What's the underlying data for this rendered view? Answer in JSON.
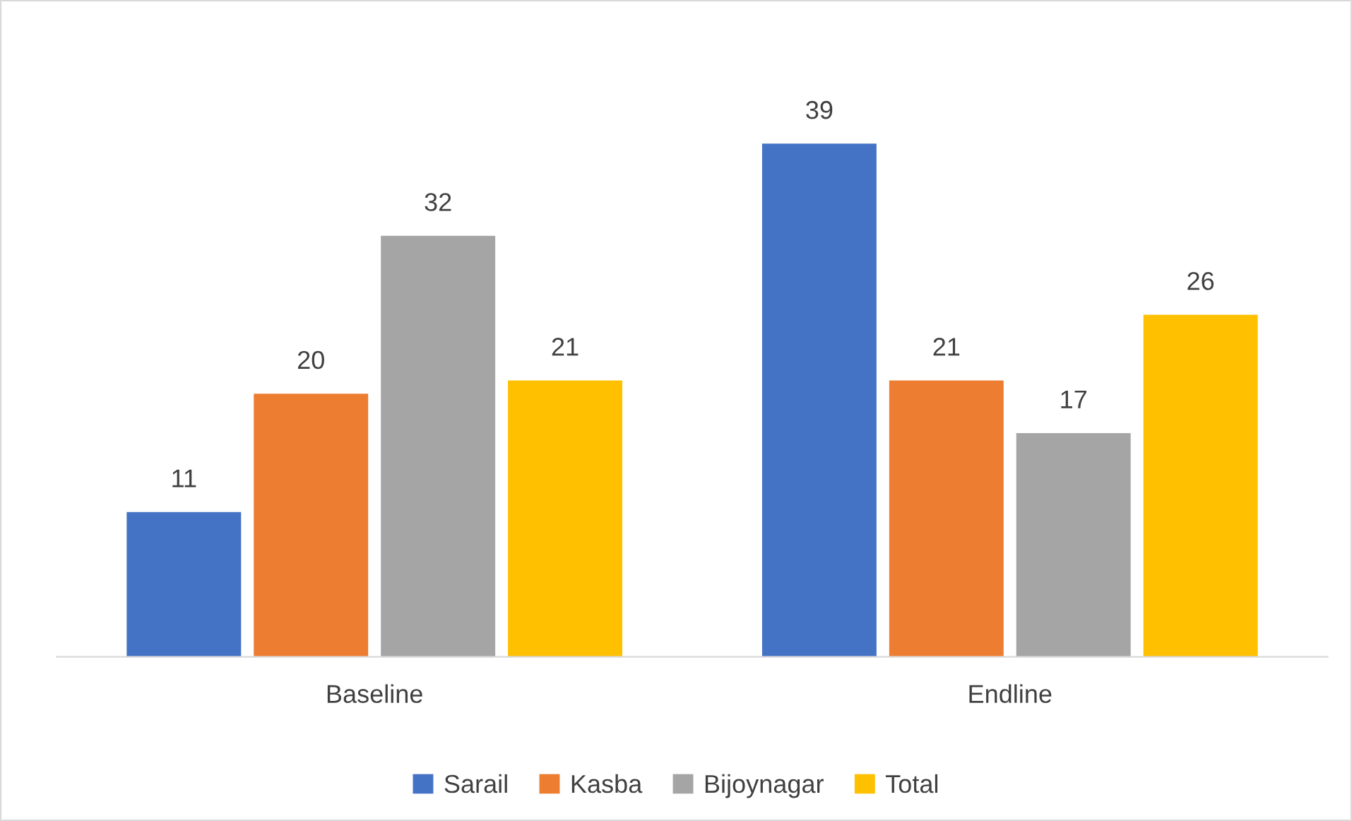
{
  "chart_data": {
    "type": "bar",
    "categories": [
      "Baseline",
      "Endline"
    ],
    "series": [
      {
        "name": "Sarail",
        "color": "#4472c4",
        "values": [
          11,
          39
        ]
      },
      {
        "name": "Kasba",
        "color": "#ed7d31",
        "values": [
          20,
          21
        ]
      },
      {
        "name": "Bijoynagar",
        "color": "#a5a5a5",
        "values": [
          32,
          17
        ]
      },
      {
        "name": "Total",
        "color": "#ffc000",
        "values": [
          21,
          26
        ]
      }
    ],
    "data_labels": true,
    "legend": "bottom",
    "grid": false
  }
}
